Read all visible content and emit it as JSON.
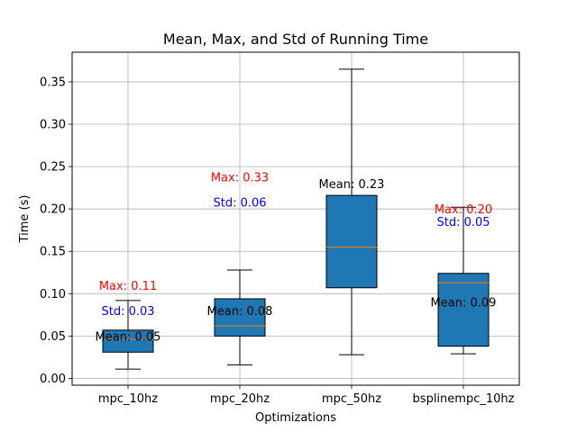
{
  "chart_data": {
    "type": "box",
    "title": "Mean, Max, and Std of Running Time",
    "xlabel": "Optimizations",
    "ylabel": "Time (s)",
    "ylim": [
      -0.008,
      0.385
    ],
    "yticks": [
      "0.00",
      "0.05",
      "0.10",
      "0.15",
      "0.20",
      "0.25",
      "0.30",
      "0.35"
    ],
    "ytick_values": [
      0.0,
      0.05,
      0.1,
      0.15,
      0.2,
      0.25,
      0.3,
      0.35
    ],
    "grid": true,
    "box_color": "#1f77b4",
    "median_color": "#ff7f0e",
    "max_color": "#ff0000",
    "std_color": "#0000ff",
    "categories": [
      {
        "name": "mpc_10hz",
        "whisker_low": 0.011,
        "q1": 0.031,
        "median": 0.046,
        "q3": 0.057,
        "whisker_high": 0.092,
        "mean_label": "Mean: 0.05",
        "mean_y": 0.05,
        "max_label": "Max: 0.11",
        "max_y": 0.11,
        "std_label": "Std: 0.03",
        "std_y": 0.095
      },
      {
        "name": "mpc_20hz",
        "whisker_low": 0.016,
        "q1": 0.05,
        "median": 0.062,
        "q3": 0.094,
        "whisker_high": 0.128,
        "mean_label": "Mean: 0.08",
        "mean_y": 0.08,
        "max_label": "Max: 0.33",
        "max_y": 0.238,
        "std_label": "Std: 0.06",
        "std_y": 0.223
      },
      {
        "name": "mpc_50hz",
        "whisker_low": 0.028,
        "q1": 0.107,
        "median": 0.155,
        "q3": 0.216,
        "whisker_high": 0.365,
        "mean_label": "Mean: 0.23",
        "mean_y": 0.23,
        "max_label": "",
        "max_y": null,
        "std_label": "",
        "std_y": null
      },
      {
        "name": "bsplinempc_10hz",
        "whisker_low": 0.029,
        "q1": 0.038,
        "median": 0.113,
        "q3": 0.124,
        "whisker_high": 0.202,
        "mean_label": "Mean: 0.09",
        "mean_y": 0.09,
        "max_label": "Max: 0.20",
        "max_y": 0.2,
        "std_label": "Std: 0.05",
        "std_y": 0.2
      }
    ]
  }
}
